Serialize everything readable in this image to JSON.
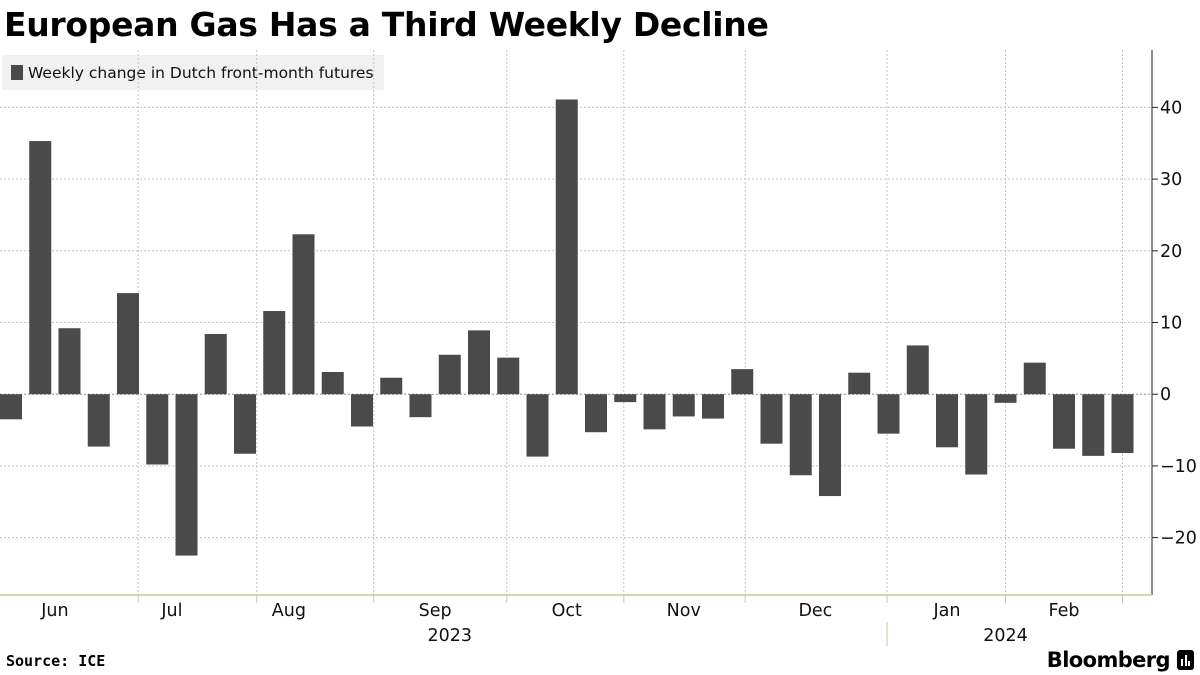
{
  "colors": {
    "bar": "#4a4a4a",
    "grid": "#c4c4c4",
    "axis_line": "#b9d48a",
    "legend_bg": "#f1f1f1"
  },
  "footer": {
    "source": "Source: ICE",
    "brand": "Bloomberg",
    "brand_icon": "bloomberg-bars-icon"
  },
  "chart_data": {
    "type": "bar",
    "title": "European Gas Has a Third Weekly Decline",
    "legend": "Weekly change in Dutch front-month futures",
    "legend_position": "top-left",
    "xlabel": "",
    "ylabel": "",
    "y_axis_side": "right",
    "ylim": [
      -28,
      48
    ],
    "yticks": [
      -20,
      -10,
      0,
      10,
      20,
      30,
      40
    ],
    "grid": true,
    "values": [
      -3.5,
      35.3,
      9.2,
      -7.3,
      14.1,
      -9.8,
      -22.5,
      8.4,
      -8.3,
      11.6,
      22.3,
      3.1,
      -4.5,
      2.3,
      -3.2,
      5.5,
      8.9,
      5.1,
      -8.7,
      41.1,
      -5.3,
      -1.1,
      -4.9,
      -3.1,
      -3.4,
      3.5,
      -6.9,
      -11.3,
      -14.2,
      3.0,
      -5.5,
      6.8,
      -7.4,
      -11.2,
      -1.2,
      4.4,
      -7.6,
      -8.6,
      -8.2
    ],
    "month_labels": [
      "Jun",
      "Jul",
      "Aug",
      "Sep",
      "Oct",
      "Nov",
      "Dec",
      "Jan",
      "Feb"
    ],
    "month_label_index": [
      1.5,
      5.5,
      9.5,
      14.5,
      19,
      23,
      27.5,
      32,
      36
    ],
    "month_boundaries": [
      4.35,
      8.4,
      12.4,
      16.95,
      20.95,
      25.1,
      29.95,
      34,
      38
    ],
    "year_labels": [
      "2023",
      "2024"
    ],
    "year_label_index": [
      15,
      34
    ],
    "year_divider_index": 29.95
  }
}
